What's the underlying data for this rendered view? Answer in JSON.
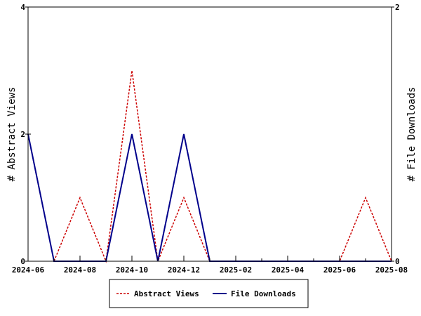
{
  "chart_data": {
    "type": "line",
    "title": "",
    "xlabel": "",
    "ylabel": "# Abstract Views",
    "ylabel_right": "# File Downloads",
    "x": [
      "2024-06",
      "2024-07",
      "2024-08",
      "2024-09",
      "2024-10",
      "2024-11",
      "2024-12",
      "2025-01",
      "2025-02",
      "2025-03",
      "2025-04",
      "2025-05",
      "2025-06",
      "2025-07",
      "2025-08"
    ],
    "x_ticks": [
      "2024-06",
      "2024-08",
      "2024-10",
      "2024-12",
      "2025-02",
      "2025-04",
      "2025-06",
      "2025-08"
    ],
    "ylim": [
      0,
      4
    ],
    "y_ticks": [
      0,
      2,
      4
    ],
    "y2lim": [
      0,
      2
    ],
    "y2_ticks": [
      0,
      2
    ],
    "grid": false,
    "legend_position": "bottom",
    "series": [
      {
        "name": "Abstract Views",
        "axis": "left",
        "color": "#cc0000",
        "style": "dashed",
        "values": [
          2,
          0,
          1,
          0,
          3,
          0,
          1,
          0,
          0,
          0,
          0,
          0,
          0,
          1,
          0
        ]
      },
      {
        "name": "File Downloads",
        "axis": "right",
        "color": "#00008b",
        "style": "solid",
        "values": [
          1,
          0,
          0,
          0,
          1,
          0,
          1,
          0,
          0,
          0,
          0,
          0,
          0,
          0,
          0
        ]
      }
    ]
  }
}
